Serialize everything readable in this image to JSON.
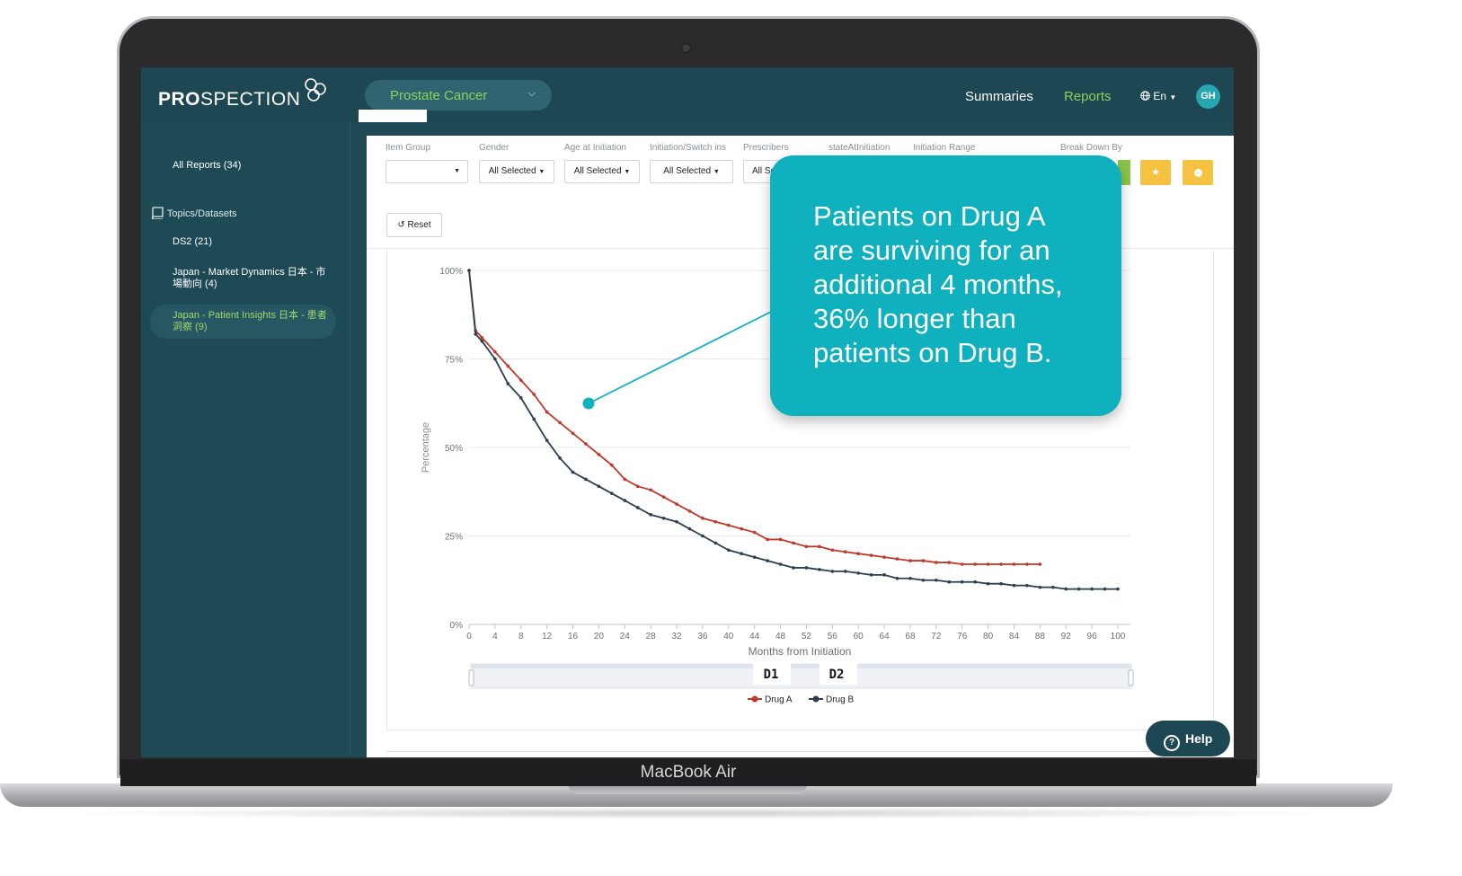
{
  "device": {
    "label": "MacBook Air"
  },
  "header": {
    "logo_bold": "PRO",
    "logo_rest": "SPECTION",
    "project": "Prostate Cancer",
    "nav": {
      "summaries": "Summaries",
      "reports": "Reports"
    },
    "language": "En",
    "avatar_initials": "GH"
  },
  "sidebar": {
    "all_reports": "All Reports (34)",
    "topics_label": "Topics/Datasets",
    "items": [
      {
        "line1": "DS2 (21)",
        "line2": ""
      },
      {
        "line1": "Japan - Market Dynamics 日本 - 市",
        "line2": "場動向 (4)"
      },
      {
        "line1": "Japan - Patient Insights 日本 - 患者",
        "line2": "洞察 (9)"
      }
    ]
  },
  "filters": {
    "item_group": {
      "label": "Item Group",
      "value": ""
    },
    "gender": {
      "label": "Gender",
      "value": "All Selected"
    },
    "age": {
      "label": "Age at Initiation",
      "value": "All Selected"
    },
    "switch": {
      "label": "Initiation/Switch ins",
      "value": "All Selected"
    },
    "prescribers": {
      "label": "Prescribers",
      "value": "All Sel"
    },
    "state": {
      "label": "stateAtInitiation"
    },
    "range": {
      "label": "Initiation Range"
    },
    "breakdown": {
      "label": "Break Down By"
    },
    "reset_label": "Reset"
  },
  "chart_data": {
    "type": "line",
    "xlabel": "Months from Initiation",
    "ylabel": "Percentage",
    "xlim": [
      0,
      100
    ],
    "ylim": [
      0,
      100
    ],
    "x_ticks": [
      0,
      4,
      8,
      12,
      16,
      20,
      24,
      28,
      32,
      36,
      40,
      44,
      48,
      52,
      56,
      60,
      64,
      68,
      72,
      76,
      80,
      84,
      88,
      92,
      96,
      100
    ],
    "y_ticks": [
      "0%",
      "25%",
      "50%",
      "75%",
      "100%"
    ],
    "grid": true,
    "legend_position": "bottom",
    "series": [
      {
        "name": "Drug A",
        "color": "#c0392b",
        "x": [
          0,
          1,
          2,
          4,
          6,
          8,
          10,
          12,
          14,
          16,
          18,
          20,
          22,
          24,
          26,
          28,
          30,
          32,
          34,
          36,
          38,
          40,
          42,
          44,
          46,
          48,
          50,
          52,
          54,
          56,
          58,
          60,
          62,
          64,
          66,
          68,
          70,
          72,
          74,
          76,
          78,
          80,
          82,
          84,
          86,
          88
        ],
        "values": [
          100,
          83,
          81,
          77,
          73,
          69,
          65,
          60,
          57,
          54,
          51,
          48,
          45,
          41,
          39,
          38,
          36,
          34,
          32,
          30,
          29,
          28,
          27,
          26,
          24,
          24,
          23,
          22,
          22,
          21,
          20.5,
          20,
          19.5,
          19,
          18.5,
          18,
          18,
          17.5,
          17.5,
          17,
          17,
          17,
          17,
          17,
          17,
          17
        ]
      },
      {
        "name": "Drug B",
        "color": "#2c3e50",
        "x": [
          0,
          1,
          2,
          4,
          6,
          8,
          10,
          12,
          14,
          16,
          18,
          20,
          22,
          24,
          26,
          28,
          30,
          32,
          34,
          36,
          38,
          40,
          42,
          44,
          46,
          48,
          50,
          52,
          54,
          56,
          58,
          60,
          62,
          64,
          66,
          68,
          70,
          72,
          74,
          76,
          78,
          80,
          82,
          84,
          86,
          88,
          90,
          92,
          94,
          96,
          98,
          100
        ],
        "values": [
          100,
          82,
          80,
          75,
          68,
          64,
          58,
          52,
          47,
          43,
          41,
          39,
          37,
          35,
          33,
          31,
          30,
          29,
          27,
          25,
          23,
          21,
          20,
          19,
          18,
          17,
          16,
          16,
          15.5,
          15,
          15,
          14.5,
          14,
          14,
          13,
          13,
          12.5,
          12.5,
          12,
          12,
          12,
          11.5,
          11.5,
          11,
          11,
          10.5,
          10.5,
          10,
          10,
          10,
          10,
          10
        ]
      }
    ],
    "range_labels": [
      "D1",
      "D2"
    ]
  },
  "callout": {
    "lines": [
      "Patients on Drug A",
      "are surviving for an",
      "additional 4 months,",
      "36% longer than",
      "patients on Drug B."
    ]
  },
  "help_label": "Help"
}
